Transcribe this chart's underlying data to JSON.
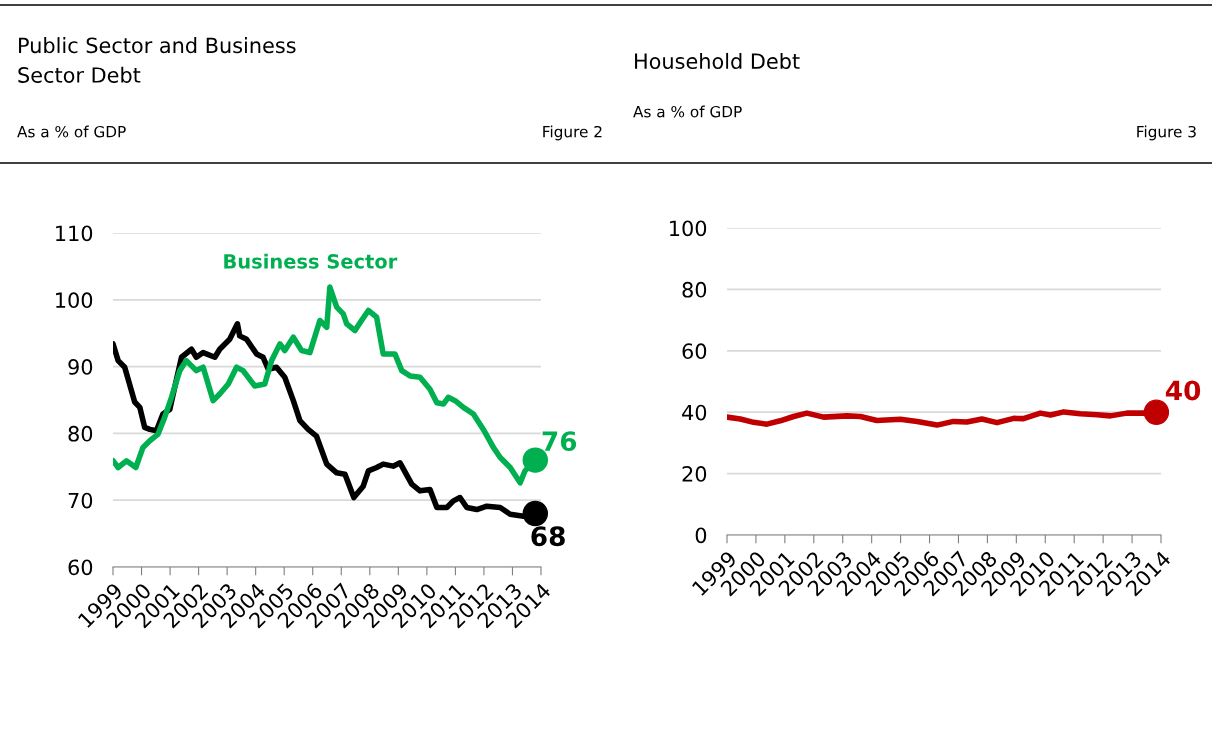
{
  "chart_data": [
    {
      "type": "line",
      "title": "Public Sector and Business\nSector Debt",
      "subtitle": "As a % of GDP",
      "annotations": [
        "Figure 2"
      ],
      "xlim": [
        1999,
        2014
      ],
      "xticks": [
        1999,
        2000,
        2001,
        2002,
        2003,
        2004,
        2005,
        2006,
        2007,
        2008,
        2009,
        2010,
        2011,
        2012,
        2013,
        2014
      ],
      "ylim": [
        60,
        110
      ],
      "yticks": [
        60,
        70,
        80,
        90,
        100,
        110
      ],
      "grid": "y",
      "legend": false,
      "marker": "none",
      "line_style": "solid",
      "series": [
        {
          "color": "#000000",
          "x": [
            1999.0,
            1999.18,
            1999.41,
            1999.76,
            1999.94,
            2000.11,
            2000.29,
            2000.52,
            2000.75,
            2000.99,
            2001.4,
            2001.75,
            2001.92,
            2002.16,
            2002.57,
            2002.74,
            2003.09,
            2003.36,
            2003.44,
            2003.68,
            2004.03,
            2004.26,
            2004.44,
            2004.73,
            2005.02,
            2005.32,
            2005.55,
            2005.84,
            2006.13,
            2006.49,
            2006.84,
            2007.13,
            2007.44,
            2007.77,
            2007.95,
            2008.24,
            2008.47,
            2008.82,
            2009.06,
            2009.47,
            2009.76,
            2010.11,
            2010.35,
            2010.7,
            2010.93,
            2011.16,
            2011.4,
            2011.75,
            2012.1,
            2012.57,
            2012.92,
            2013.39,
            2013.8
          ],
          "values": [
            93.4,
            90.9,
            89.9,
            84.7,
            83.9,
            80.9,
            80.6,
            80.4,
            82.9,
            83.6,
            91.4,
            92.6,
            91.4,
            92.1,
            91.4,
            92.6,
            94.1,
            96.4,
            94.6,
            94.1,
            91.9,
            91.4,
            89.6,
            89.9,
            88.4,
            84.9,
            81.9,
            80.6,
            79.6,
            75.4,
            74.1,
            73.9,
            70.4,
            72.1,
            74.4,
            74.9,
            75.4,
            75.1,
            75.6,
            72.4,
            71.4,
            71.6,
            68.9,
            68.9,
            69.9,
            70.4,
            68.9,
            68.6,
            69.1,
            68.9,
            67.9,
            67.6,
            68
          ]
        },
        {
          "name": "Business Sector",
          "color": "#00b050",
          "x": [
            1999.0,
            1999.18,
            1999.47,
            1999.8,
            2000.05,
            2000.29,
            2000.58,
            2000.81,
            2001.05,
            2001.34,
            2001.57,
            2001.92,
            2002.16,
            2002.51,
            2002.74,
            2003.04,
            2003.33,
            2003.56,
            2003.97,
            2004.32,
            2004.56,
            2004.85,
            2005.02,
            2005.32,
            2005.61,
            2005.9,
            2006.25,
            2006.49,
            2006.6,
            2006.84,
            2007.07,
            2007.19,
            2007.48,
            2007.71,
            2007.95,
            2008.24,
            2008.47,
            2008.88,
            2009.12,
            2009.41,
            2009.76,
            2010.11,
            2010.35,
            2010.58,
            2010.75,
            2010.99,
            2011.28,
            2011.63,
            2011.98,
            2012.33,
            2012.57,
            2012.92,
            2013.27,
            2013.44,
            2013.8
          ],
          "values": [
            75.9,
            74.9,
            75.9,
            74.9,
            77.9,
            78.9,
            79.9,
            82.4,
            85.4,
            89.4,
            90.9,
            89.4,
            89.9,
            84.9,
            85.9,
            87.4,
            89.9,
            89.4,
            87.1,
            87.4,
            90.9,
            93.4,
            92.4,
            94.4,
            92.4,
            92.1,
            96.9,
            95.9,
            101.9,
            98.9,
            97.9,
            96.4,
            95.4,
            96.9,
            98.4,
            97.4,
            91.9,
            91.9,
            89.4,
            88.6,
            88.4,
            86.6,
            84.6,
            84.4,
            85.4,
            84.9,
            83.9,
            82.9,
            80.6,
            77.9,
            76.4,
            74.9,
            72.6,
            74.4,
            76
          ]
        },
        {
          "type": "scatter",
          "marker": "circle",
          "color": "#00b050",
          "x": [
            2013.8
          ],
          "values": [
            76
          ],
          "value_labels": [
            "76"
          ]
        },
        {
          "type": "scatter",
          "marker": "circle",
          "color": "#000000",
          "x": [
            2013.8
          ],
          "values": [
            68
          ],
          "value_labels": [
            "68"
          ]
        }
      ]
    },
    {
      "type": "line",
      "title": "Household Debt",
      "subtitle": "As a % of GDP",
      "annotations": [
        "Figure 3"
      ],
      "xlim": [
        1999,
        2014
      ],
      "xticks": [
        1999,
        2000,
        2001,
        2002,
        2003,
        2004,
        2005,
        2006,
        2007,
        2008,
        2009,
        2010,
        2011,
        2012,
        2013,
        2014
      ],
      "ylim": [
        0,
        100
      ],
      "yticks": [
        0,
        20,
        40,
        60,
        80,
        100
      ],
      "grid": "y",
      "legend": false,
      "marker": "none",
      "line_style": "solid",
      "series": [
        {
          "color": "#c00000",
          "x": [
            1999.0,
            1999.46,
            1999.92,
            2000.38,
            2000.84,
            2001.3,
            2001.76,
            2002.34,
            2003.15,
            2003.61,
            2004.18,
            2004.99,
            2005.57,
            2006.26,
            2006.83,
            2007.29,
            2007.81,
            2008.33,
            2008.91,
            2009.25,
            2009.83,
            2010.18,
            2010.64,
            2011.21,
            2011.79,
            2012.25,
            2012.82,
            2013.4,
            2013.84
          ],
          "values": [
            38.4,
            37.8,
            36.7,
            36.1,
            37.2,
            38.6,
            39.7,
            38.4,
            38.8,
            38.6,
            37.3,
            37.7,
            37.0,
            35.8,
            37.0,
            36.8,
            37.8,
            36.6,
            38.0,
            37.9,
            39.7,
            39.1,
            40.1,
            39.5,
            39.2,
            38.8,
            39.7,
            39.7,
            40
          ]
        },
        {
          "type": "scatter",
          "marker": "circle",
          "color": "#c00000",
          "x": [
            2013.84
          ],
          "values": [
            40
          ],
          "value_labels": [
            "40"
          ]
        }
      ]
    }
  ]
}
